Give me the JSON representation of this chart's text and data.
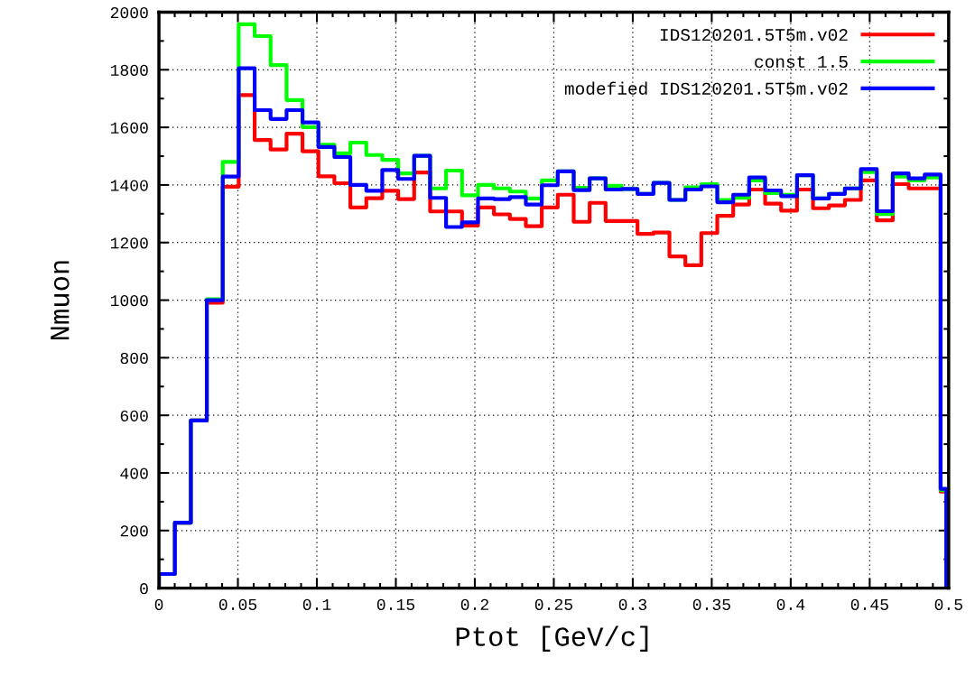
{
  "chart_data": {
    "type": "histogram",
    "xlabel": "Ptot [GeV/c]",
    "ylabel": "Nmuon",
    "bins": [
      0,
      0.0101,
      0.0202,
      0.0303,
      0.0404,
      0.0505,
      0.0606,
      0.0707,
      0.0808,
      0.0909,
      0.101,
      0.1111,
      0.1212,
      0.1313,
      0.1414,
      0.1515,
      0.1616,
      0.1717,
      0.1818,
      0.1919,
      0.202,
      0.2121,
      0.2222,
      0.2323,
      0.2424,
      0.2525,
      0.2626,
      0.2727,
      0.2828,
      0.2929,
      0.303,
      0.3131,
      0.3232,
      0.3333,
      0.3434,
      0.3535,
      0.3636,
      0.3737,
      0.3838,
      0.3939,
      0.404,
      0.4141,
      0.4242,
      0.4343,
      0.4444,
      0.4545,
      0.4646,
      0.4747,
      0.4848,
      0.4949,
      0.4985
    ],
    "series": [
      {
        "name": "IDS120201.5T5m.v02",
        "color": "#ff0000",
        "values": [
          49,
          227,
          582,
          991,
          1394,
          1712,
          1556,
          1523,
          1578,
          1517,
          1430,
          1406,
          1322,
          1354,
          1380,
          1351,
          1443,
          1308,
          1308,
          1259,
          1322,
          1298,
          1282,
          1257,
          1322,
          1366,
          1272,
          1338,
          1275,
          1275,
          1230,
          1235,
          1152,
          1121,
          1233,
          1293,
          1332,
          1384,
          1335,
          1311,
          1384,
          1319,
          1329,
          1348,
          1416,
          1277,
          1403,
          1388,
          1388,
          335
        ]
      },
      {
        "name": "const 1.5",
        "color": "#00ff00",
        "values": [
          49,
          227,
          582,
          1003,
          1480,
          1958,
          1917,
          1816,
          1695,
          1601,
          1540,
          1510,
          1547,
          1504,
          1487,
          1440,
          1501,
          1388,
          1450,
          1364,
          1400,
          1388,
          1377,
          1353,
          1416,
          1447,
          1390,
          1423,
          1397,
          1386,
          1369,
          1407,
          1348,
          1392,
          1403,
          1348,
          1355,
          1416,
          1372,
          1366,
          1434,
          1353,
          1369,
          1388,
          1445,
          1299,
          1429,
          1416,
          1426,
          340
        ]
      },
      {
        "name": "modefied IDS120201.5T5m.v02",
        "color": "#0000ff",
        "values": [
          49,
          227,
          582,
          1000,
          1429,
          1805,
          1660,
          1629,
          1660,
          1617,
          1532,
          1497,
          1400,
          1380,
          1452,
          1421,
          1501,
          1355,
          1254,
          1270,
          1353,
          1351,
          1358,
          1332,
          1399,
          1447,
          1382,
          1423,
          1384,
          1386,
          1369,
          1407,
          1348,
          1384,
          1395,
          1340,
          1366,
          1426,
          1381,
          1361,
          1434,
          1353,
          1369,
          1388,
          1455,
          1309,
          1440,
          1423,
          1436,
          345
        ]
      }
    ],
    "xlim": [
      0,
      0.5
    ],
    "ylim": [
      0,
      2000
    ],
    "xticks": [
      0,
      0.05,
      0.1,
      0.15,
      0.2,
      0.25,
      0.3,
      0.35,
      0.4,
      0.45,
      0.5
    ],
    "yticks": [
      0,
      200,
      400,
      600,
      800,
      1000,
      1200,
      1400,
      1600,
      1800,
      2000
    ],
    "grid": true,
    "legend": "top right"
  }
}
